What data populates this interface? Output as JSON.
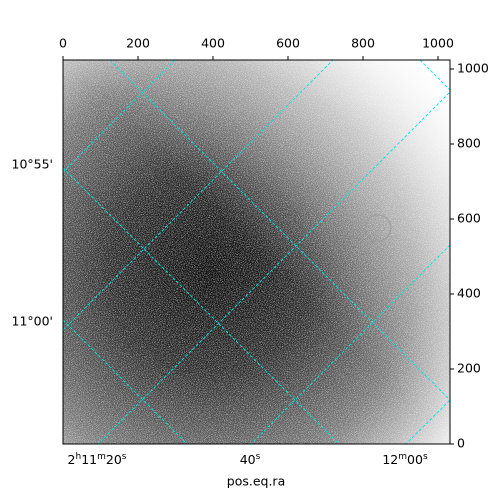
{
  "chart_data": {
    "type": "image",
    "xlabel": "pos.eq.ra",
    "xlim": [
      0,
      1032
    ],
    "xticks": [
      0,
      200,
      400,
      600,
      800,
      1000
    ],
    "ylim": [
      0,
      1024
    ],
    "yticks": [
      0,
      200,
      400,
      600,
      800,
      1000
    ],
    "wcs_xticks": [
      "2h11m20s",
      "40s",
      "12m00s"
    ],
    "wcs_yticks": [
      "10°55'",
      "11°00'"
    ],
    "colormap": "gray",
    "grid": true,
    "grid_color": "#00e5e5"
  }
}
